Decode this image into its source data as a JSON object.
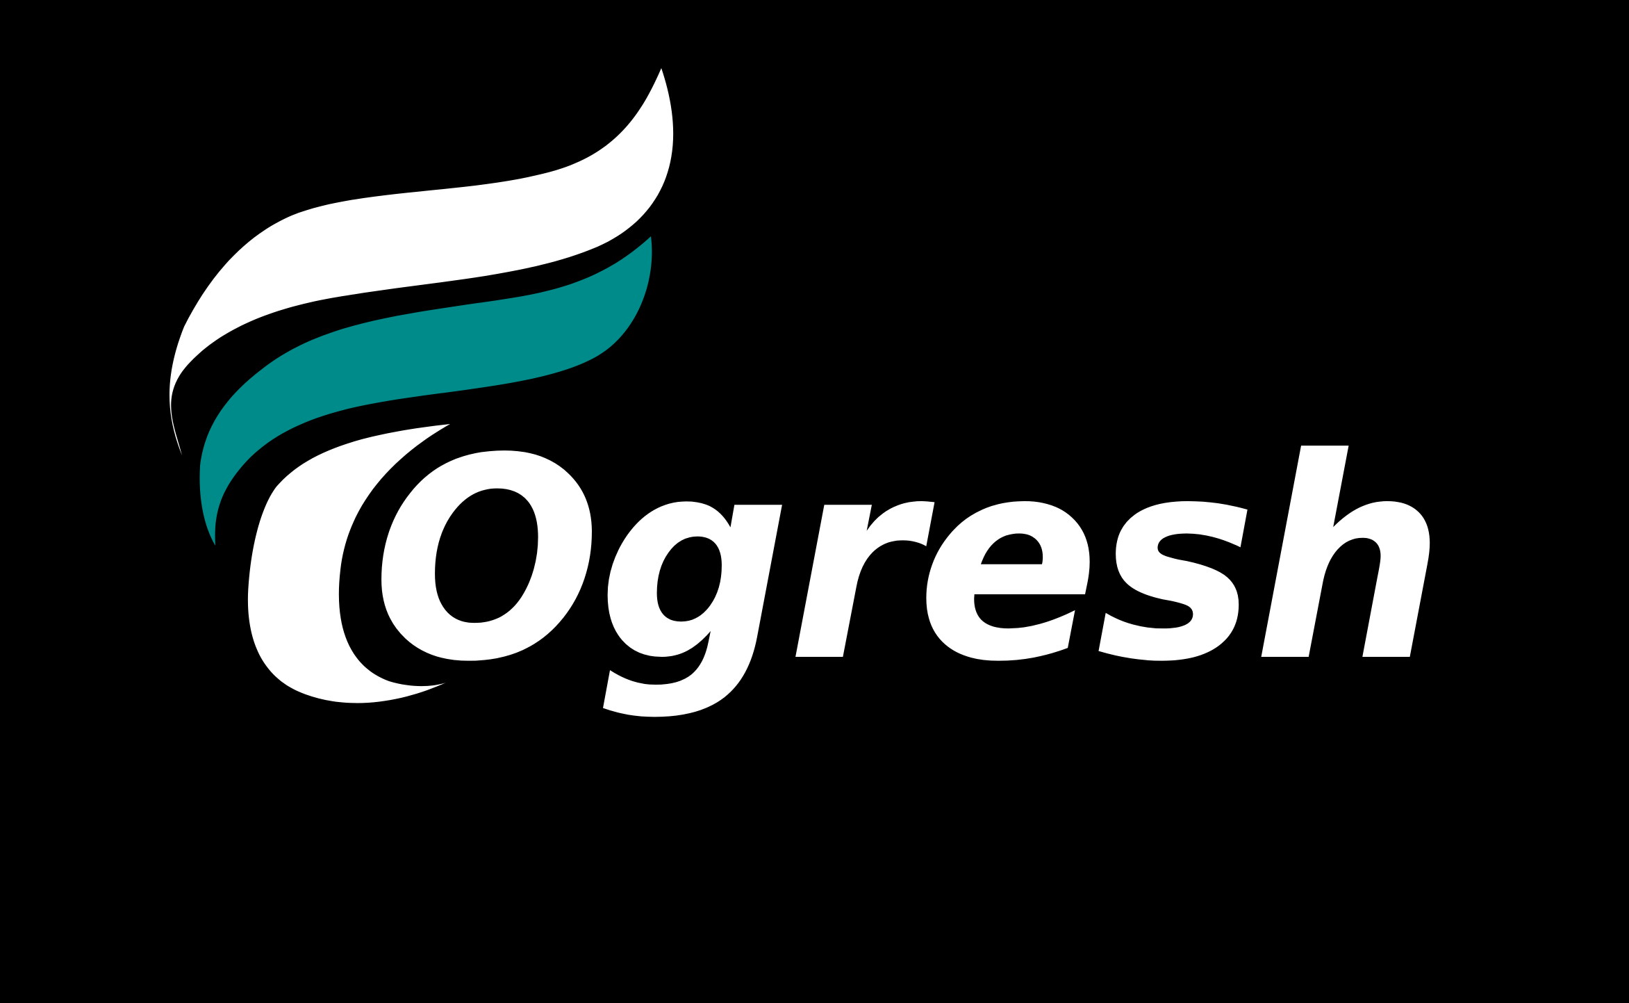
{
  "logo": {
    "wordmark": "Ogresh",
    "colors": {
      "background": "#000000",
      "primary": "#ffffff",
      "accent": "#008b8b"
    },
    "emblem_icon": "flame-swoosh-icon"
  }
}
